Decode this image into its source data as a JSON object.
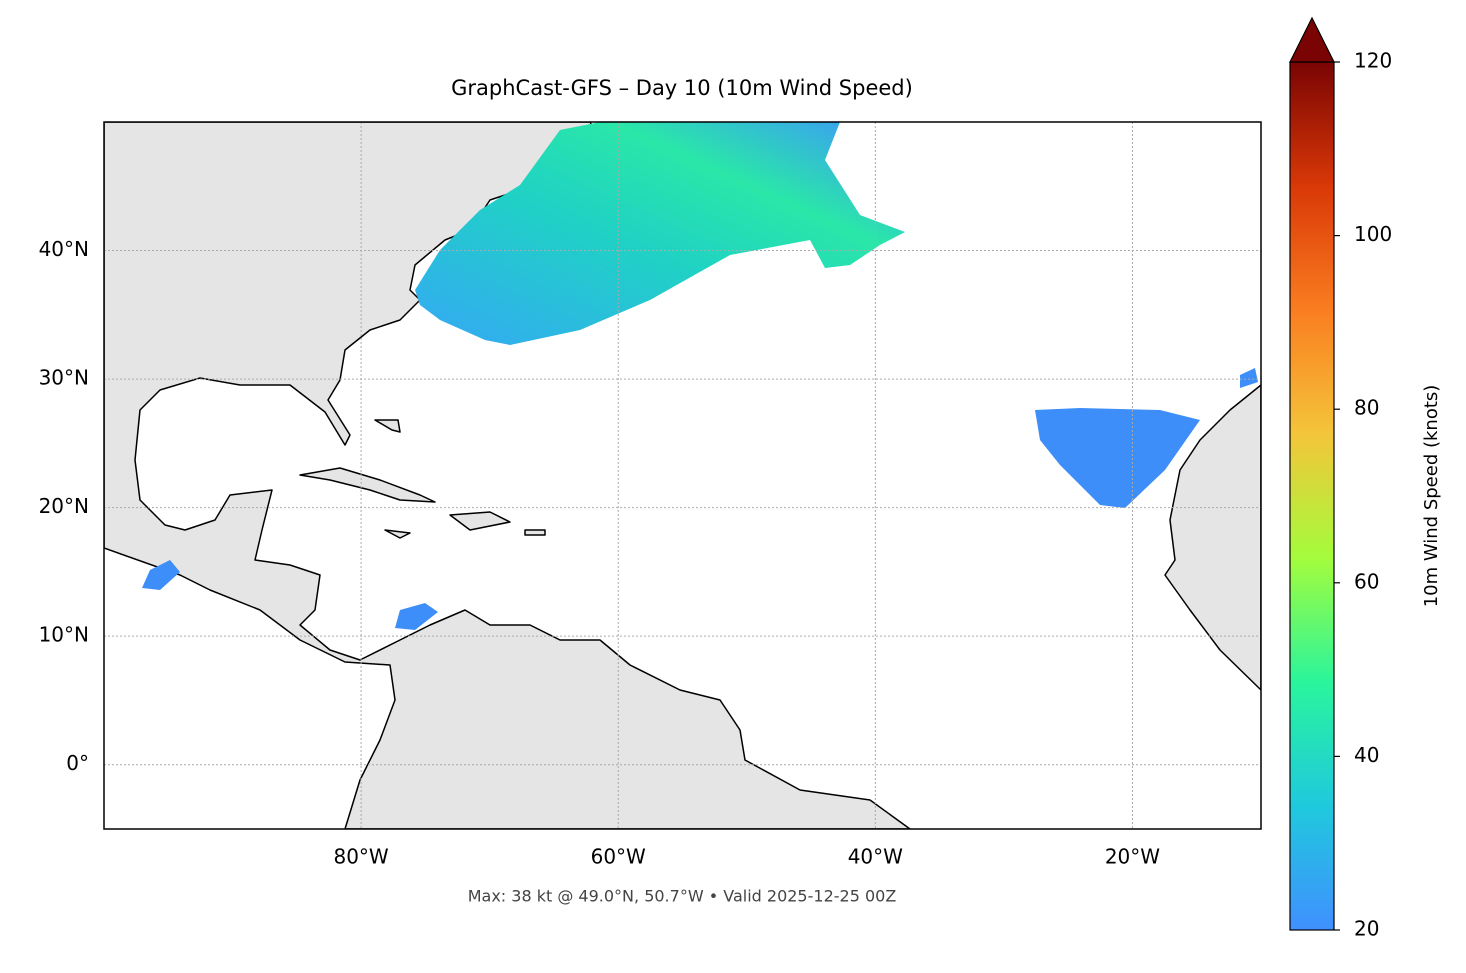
{
  "title": "GraphCast-GFS – Day 10 (10m Wind Speed)",
  "caption": "Max: 38 kt @ 49.0°N, 50.7°W • Valid 2025-12-25 00Z",
  "map": {
    "lon_lim": [
      -100,
      -10
    ],
    "lat_lim": [
      -5,
      50
    ],
    "lon_ticks": [
      {
        "value": -80,
        "label": "80°W"
      },
      {
        "value": -60,
        "label": "60°W"
      },
      {
        "value": -40,
        "label": "40°W"
      },
      {
        "value": -20,
        "label": "20°W"
      }
    ],
    "lat_ticks": [
      {
        "value": 0,
        "label": "0°"
      },
      {
        "value": 10,
        "label": "10°N"
      },
      {
        "value": 20,
        "label": "20°N"
      },
      {
        "value": 30,
        "label": "30°N"
      },
      {
        "value": 40,
        "label": "40°N"
      }
    ],
    "grid": true
  },
  "colorbar": {
    "label": "10m Wind Speed (knots)",
    "lim": [
      20,
      120
    ],
    "ticks": [
      20,
      40,
      60,
      80,
      100,
      120
    ],
    "colors": [
      "#4090ff",
      "#1fc9dd",
      "#2af59c",
      "#a4fc3c",
      "#f4c53a",
      "#fa7d20",
      "#d93807",
      "#7a0403"
    ],
    "extend": "max"
  }
}
